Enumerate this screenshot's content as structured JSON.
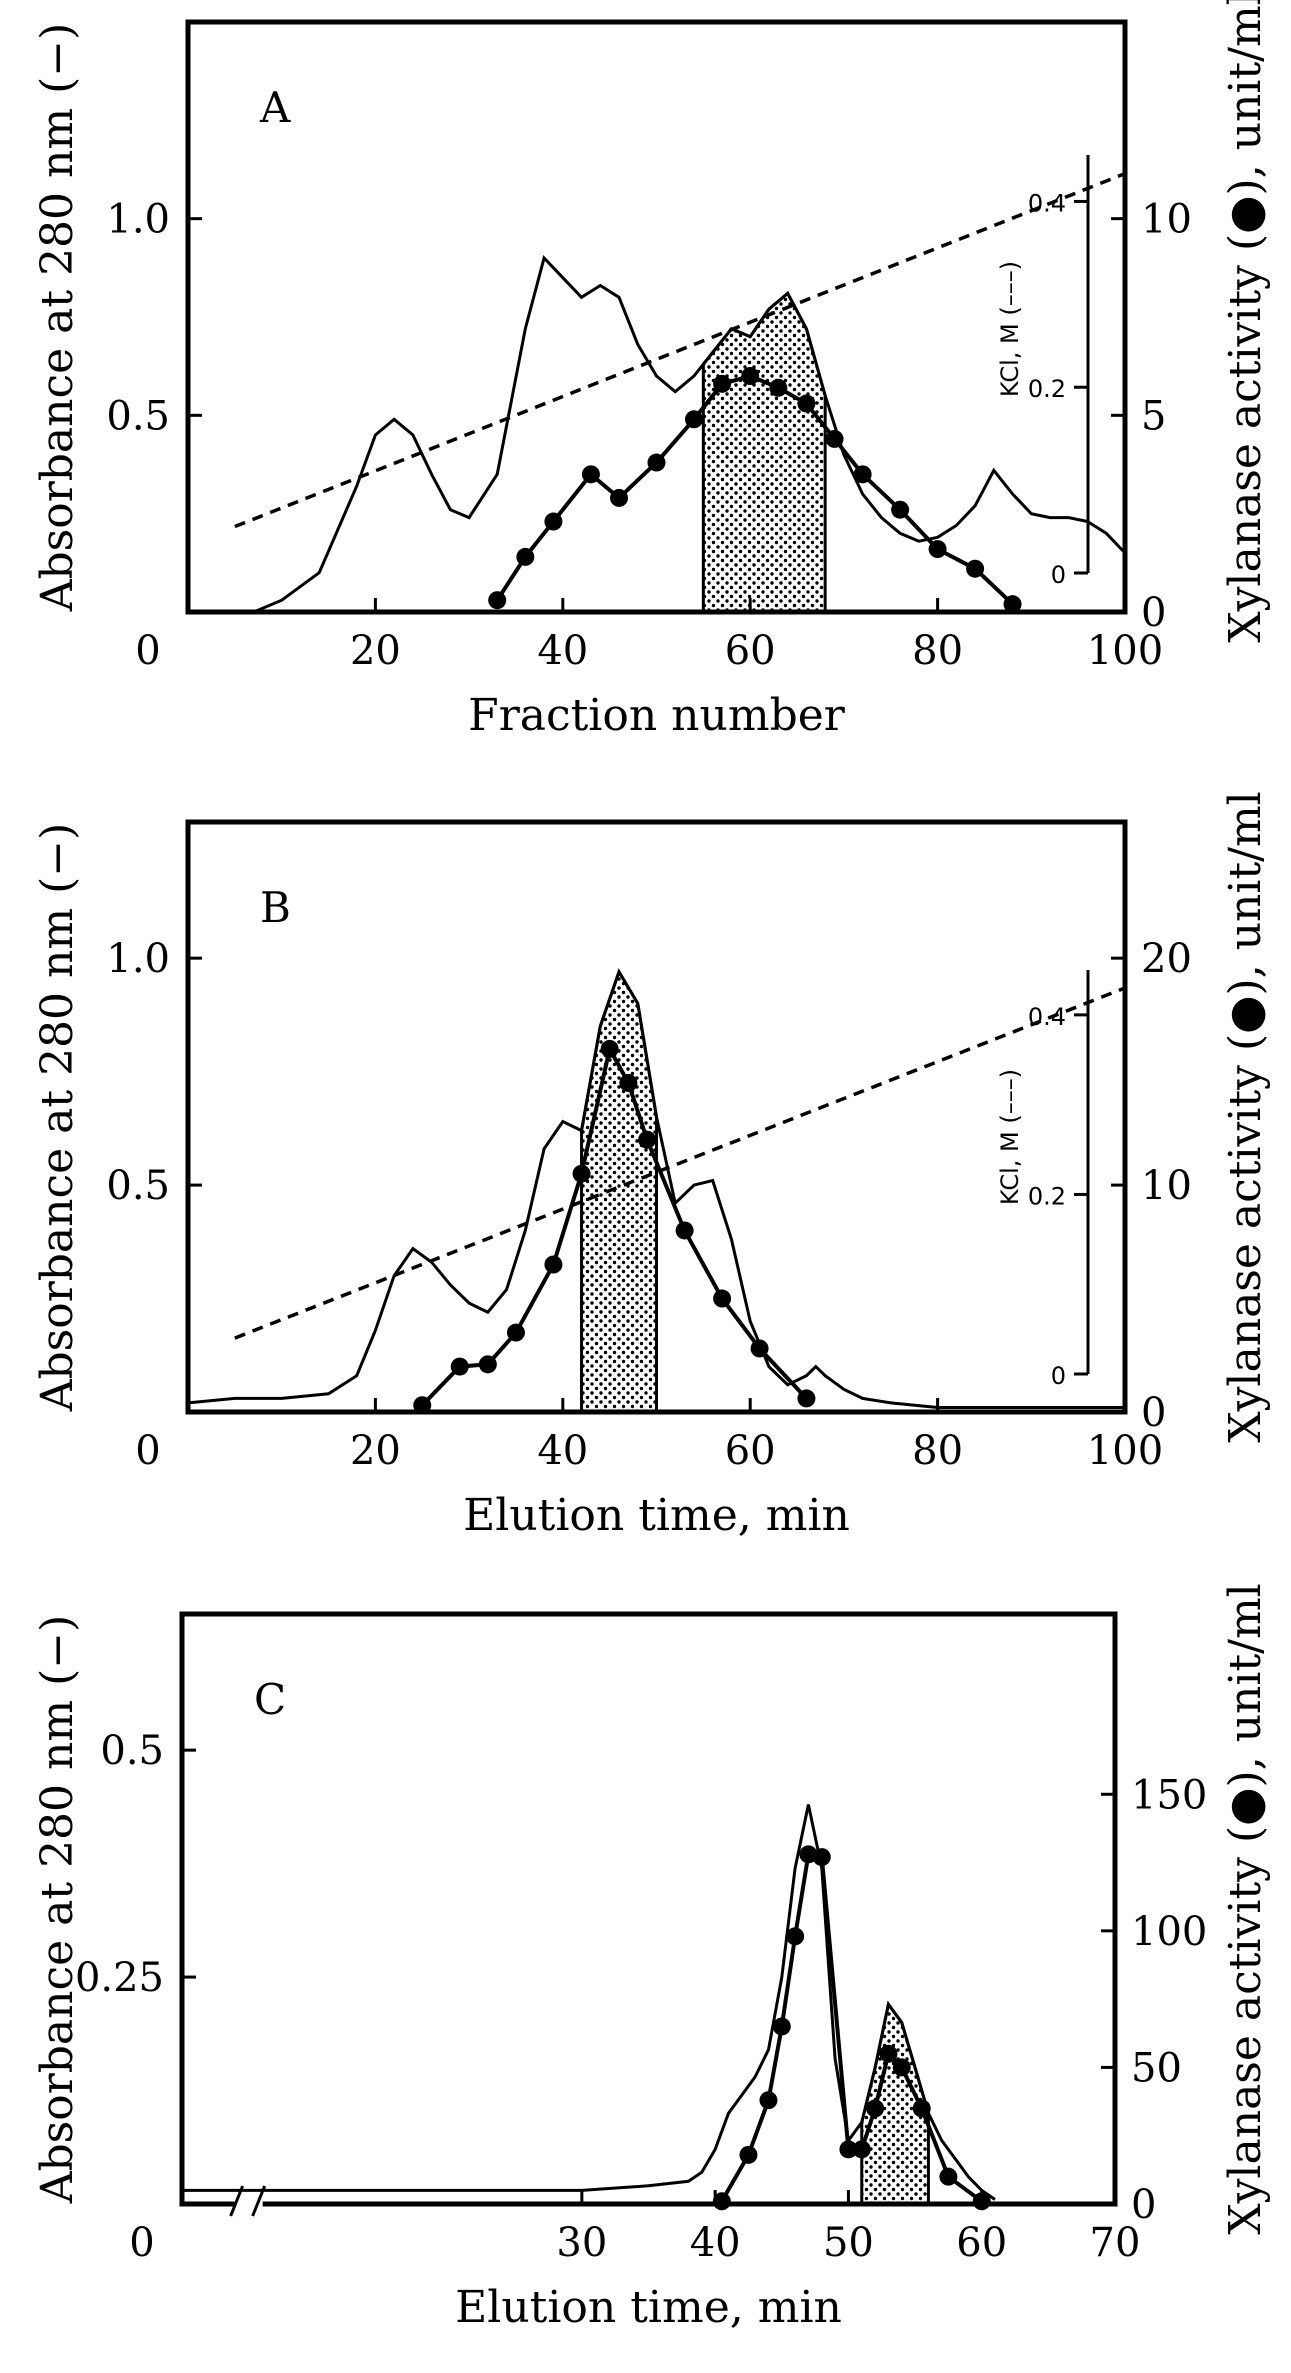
{
  "chart_data": [
    {
      "type": "line",
      "panel_label": "A",
      "xlabel": "Fraction number",
      "ylabel_left": "Absorbance at 280 nm (−)",
      "ylabel_right": "Xylanase activity (●), unit/ml",
      "xlim": [
        0,
        100
      ],
      "x_ticks": [
        "0",
        "20",
        "40",
        "60",
        "80",
        "100"
      ],
      "ylim_left": [
        0,
        1.5
      ],
      "y_left_ticks": [
        "0",
        "0.5",
        "1.0"
      ],
      "y_left_tick_values": [
        0,
        0.5,
        1.0
      ],
      "ylim_right": [
        0,
        15
      ],
      "y_right_ticks": [
        "0",
        "5",
        "10"
      ],
      "y_right_tick_values": [
        0,
        5,
        10
      ],
      "kcl_axis": {
        "label": "KCl, M (–––)",
        "ticks": [
          "0",
          "0.2",
          "0.4"
        ],
        "tick_values": [
          0,
          0.2,
          0.4
        ],
        "range": [
          0,
          0.45
        ]
      },
      "absorbance": {
        "x": [
          7,
          10,
          14,
          18,
          20,
          22,
          24,
          26,
          28,
          30,
          33,
          36,
          38,
          40,
          42,
          44,
          46,
          48,
          50,
          52,
          54,
          56,
          58,
          60,
          62,
          64,
          66,
          68,
          70,
          72,
          74,
          76,
          78,
          80,
          82,
          84,
          86,
          88,
          90,
          92,
          94,
          96,
          98,
          100
        ],
        "y": [
          0.0,
          0.03,
          0.1,
          0.32,
          0.45,
          0.49,
          0.45,
          0.35,
          0.26,
          0.24,
          0.35,
          0.72,
          0.9,
          0.85,
          0.8,
          0.83,
          0.8,
          0.68,
          0.6,
          0.56,
          0.6,
          0.66,
          0.72,
          0.7,
          0.77,
          0.81,
          0.72,
          0.55,
          0.4,
          0.3,
          0.24,
          0.2,
          0.18,
          0.19,
          0.22,
          0.27,
          0.36,
          0.3,
          0.25,
          0.24,
          0.24,
          0.23,
          0.2,
          0.15
        ]
      },
      "activity": {
        "x": [
          33,
          36,
          39,
          43,
          46,
          50,
          54,
          57,
          60,
          63,
          66,
          69,
          72,
          76,
          80,
          84,
          88
        ],
        "y": [
          0.3,
          1.4,
          2.3,
          3.5,
          2.9,
          3.8,
          4.9,
          5.8,
          6.0,
          5.7,
          5.3,
          4.4,
          3.5,
          2.6,
          1.6,
          1.1,
          0.2
        ]
      },
      "kcl": {
        "x": [
          5,
          100
        ],
        "y": [
          0.05,
          0.43
        ]
      },
      "shaded": {
        "x_from": 55,
        "x_to": 68
      }
    },
    {
      "type": "line",
      "panel_label": "B",
      "xlabel": "Elution time, min",
      "ylabel_left": "Absorbance at 280 nm (−)",
      "ylabel_right": "Xylanase activity (●), unit/ml",
      "xlim": [
        0,
        100
      ],
      "x_ticks": [
        "0",
        "20",
        "40",
        "60",
        "80",
        "100"
      ],
      "ylim_left": [
        0,
        1.3
      ],
      "y_left_ticks": [
        "0",
        "0.5",
        "1.0"
      ],
      "y_left_tick_values": [
        0,
        0.5,
        1.0
      ],
      "ylim_right": [
        0,
        26
      ],
      "y_right_ticks": [
        "0",
        "10",
        "20"
      ],
      "y_right_tick_values": [
        0,
        10,
        20
      ],
      "kcl_axis": {
        "label": "KCl, M (–––)",
        "ticks": [
          "0",
          "0.2",
          "0.4"
        ],
        "tick_values": [
          0,
          0.2,
          0.4
        ],
        "range": [
          0,
          0.45
        ]
      },
      "absorbance": {
        "x": [
          0,
          5,
          10,
          15,
          18,
          20,
          22,
          24,
          26,
          28,
          30,
          32,
          34,
          36,
          38,
          40,
          42,
          44,
          46,
          48,
          50,
          52,
          54,
          56,
          58,
          60,
          62,
          64,
          66,
          67,
          68,
          70,
          72,
          75,
          80,
          85,
          90,
          95,
          100
        ],
        "y": [
          0.02,
          0.03,
          0.03,
          0.04,
          0.08,
          0.18,
          0.3,
          0.36,
          0.33,
          0.28,
          0.24,
          0.22,
          0.27,
          0.4,
          0.58,
          0.64,
          0.62,
          0.85,
          0.97,
          0.9,
          0.65,
          0.46,
          0.5,
          0.51,
          0.38,
          0.2,
          0.1,
          0.06,
          0.08,
          0.1,
          0.08,
          0.05,
          0.03,
          0.02,
          0.01,
          0.01,
          0.01,
          0.01,
          0.01
        ]
      },
      "activity": {
        "x": [
          25,
          29,
          32,
          35,
          39,
          42,
          45,
          47,
          49,
          53,
          57,
          61,
          66
        ],
        "y": [
          0.3,
          2.0,
          2.1,
          3.5,
          6.5,
          10.5,
          16.0,
          14.5,
          12.0,
          8.0,
          5.0,
          2.8,
          0.6
        ]
      },
      "kcl": {
        "x": [
          5,
          100
        ],
        "y": [
          0.04,
          0.43
        ]
      },
      "shaded": {
        "x_from": 42,
        "x_to": 50
      }
    },
    {
      "type": "line",
      "panel_label": "C",
      "xlabel": "Elution time, min",
      "ylabel_left": "Absorbance at 280 nm (−)",
      "ylabel_right": "Xylanase activity (●), unit/ml",
      "xlim": [
        0,
        70
      ],
      "x_ticks": [
        "0",
        "30",
        "40",
        "50",
        "60",
        "70"
      ],
      "x_tick_values": [
        0,
        30,
        40,
        50,
        60,
        70
      ],
      "axis_break_near": 5,
      "ylim_left": [
        0,
        0.65
      ],
      "y_left_ticks": [
        "0.5",
        "0.25"
      ],
      "y_left_tick_values": [
        0.5,
        0.25
      ],
      "ylim_right": [
        0,
        216
      ],
      "y_right_ticks": [
        "0",
        "50",
        "100",
        "150"
      ],
      "y_right_tick_values": [
        0,
        50,
        100,
        150
      ],
      "absorbance": {
        "x": [
          0,
          10,
          20,
          30,
          35,
          38,
          39,
          40,
          41,
          42,
          43,
          44,
          45,
          46,
          47,
          48,
          49,
          50,
          51,
          52,
          53,
          54,
          55,
          56,
          57,
          58,
          59,
          60,
          61
        ],
        "y": [
          0.015,
          0.015,
          0.015,
          0.015,
          0.02,
          0.025,
          0.035,
          0.06,
          0.1,
          0.12,
          0.14,
          0.17,
          0.25,
          0.37,
          0.44,
          0.37,
          0.16,
          0.07,
          0.09,
          0.15,
          0.22,
          0.2,
          0.15,
          0.1,
          0.07,
          0.05,
          0.03,
          0.015,
          0.005
        ]
      },
      "activity": {
        "x": [
          40.5,
          42.5,
          44,
          45,
          46,
          47,
          48,
          50,
          51,
          52,
          53,
          54,
          55.5,
          57.5,
          60
        ],
        "y": [
          1,
          18,
          38,
          65,
          98,
          128,
          127,
          20,
          20,
          35,
          55,
          50,
          35,
          10,
          1
        ]
      },
      "shaded": {
        "x_from": 51,
        "x_to": 56
      }
    }
  ]
}
